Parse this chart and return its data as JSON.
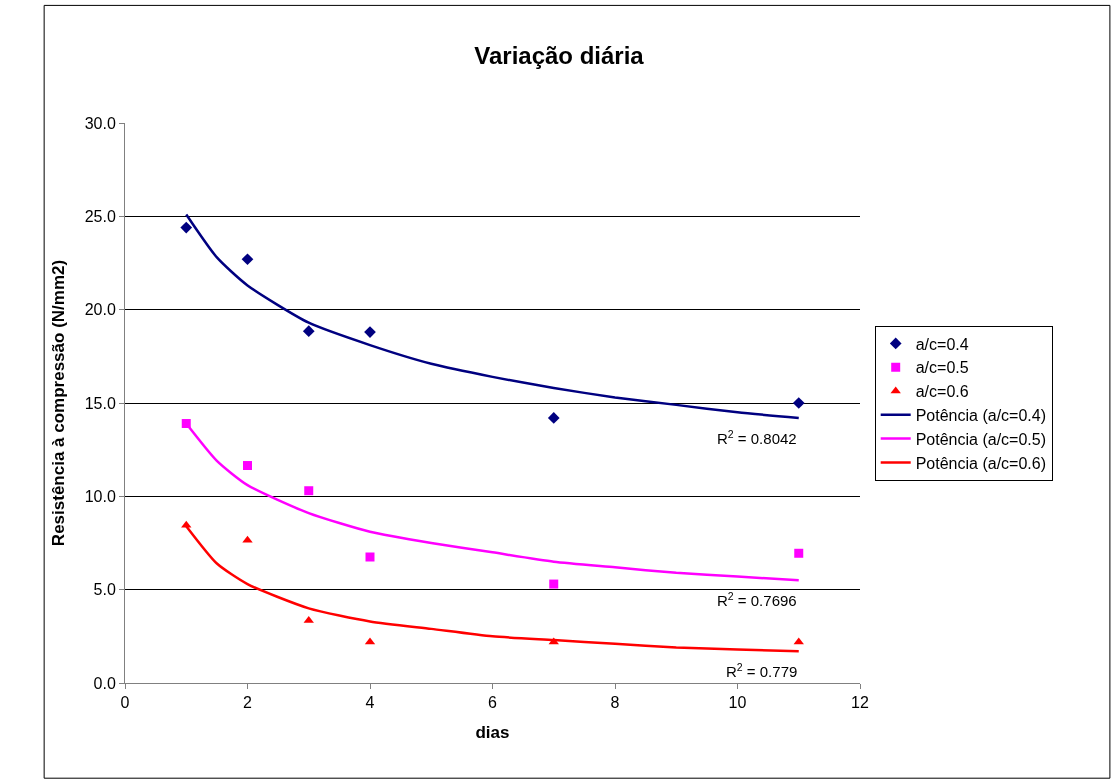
{
  "chart_data": {
    "type": "scatter",
    "title": "Variação diária",
    "xlabel": "dias",
    "ylabel": "Resistência à compressão (N/mm2)",
    "x": [
      1,
      2,
      3,
      4,
      7,
      11
    ],
    "series": [
      {
        "name": "a/c=0.4",
        "color": "#000080",
        "marker": "diamond",
        "values": [
          24.4,
          22.7,
          18.85,
          18.8,
          14.2,
          15.0
        ]
      },
      {
        "name": "a/c=0.5",
        "color": "#ff00ff",
        "marker": "square",
        "values": [
          13.9,
          11.65,
          10.3,
          6.75,
          5.3,
          6.95
        ]
      },
      {
        "name": "a/c=0.6",
        "color": "#ff0000",
        "marker": "triangle",
        "values": [
          8.45,
          7.65,
          3.35,
          2.2,
          2.2,
          2.2
        ]
      },
      {
        "name": "Potência (a/c=0.4)",
        "type": "line",
        "color": "#000080",
        "marker": "none",
        "x": [
          1,
          1.5,
          2,
          3,
          4,
          5,
          6,
          7,
          8,
          9,
          10,
          11
        ],
        "values": [
          25.1,
          22.8,
          21.3,
          19.3,
          18.1,
          17.1,
          16.4,
          15.8,
          15.3,
          14.9,
          14.5,
          14.2
        ]
      },
      {
        "name": "Potência (a/c=0.5)",
        "type": "line",
        "color": "#ff00ff",
        "marker": "none",
        "x": [
          1,
          1.5,
          2,
          3,
          4,
          5,
          6,
          7,
          8,
          9,
          10,
          11
        ],
        "values": [
          13.9,
          11.9,
          10.6,
          9.1,
          8.1,
          7.5,
          7.0,
          6.5,
          6.2,
          5.9,
          5.7,
          5.5
        ]
      },
      {
        "name": "Potência (a/c=0.6)",
        "type": "line",
        "color": "#ff0000",
        "marker": "none",
        "x": [
          1,
          1.5,
          2,
          3,
          4,
          5,
          6,
          7,
          8,
          9,
          10,
          11
        ],
        "values": [
          8.4,
          6.4,
          5.3,
          4.0,
          3.3,
          2.9,
          2.5,
          2.3,
          2.1,
          1.9,
          1.8,
          1.7
        ]
      }
    ],
    "annotations": [
      "R$^{2}$ = 0.8042",
      "R$^{2}$ = 0.7696",
      "R$^{2}$ = 0.779"
    ],
    "xlim": [
      0,
      12
    ],
    "xticks": [
      0,
      2,
      4,
      6,
      8,
      10,
      12
    ],
    "ylim": [
      0,
      30
    ],
    "yticks": [
      {
        "value": 0,
        "label": "0.0"
      },
      {
        "value": 5,
        "label": "5.0"
      },
      {
        "value": 10,
        "label": "10.0"
      },
      {
        "value": 15,
        "label": "15.0"
      },
      {
        "value": 20,
        "label": "20.0"
      },
      {
        "value": 25,
        "label": "25.0"
      },
      {
        "value": 30,
        "label": "30.0"
      }
    ],
    "grid": "y",
    "legend": "right"
  }
}
